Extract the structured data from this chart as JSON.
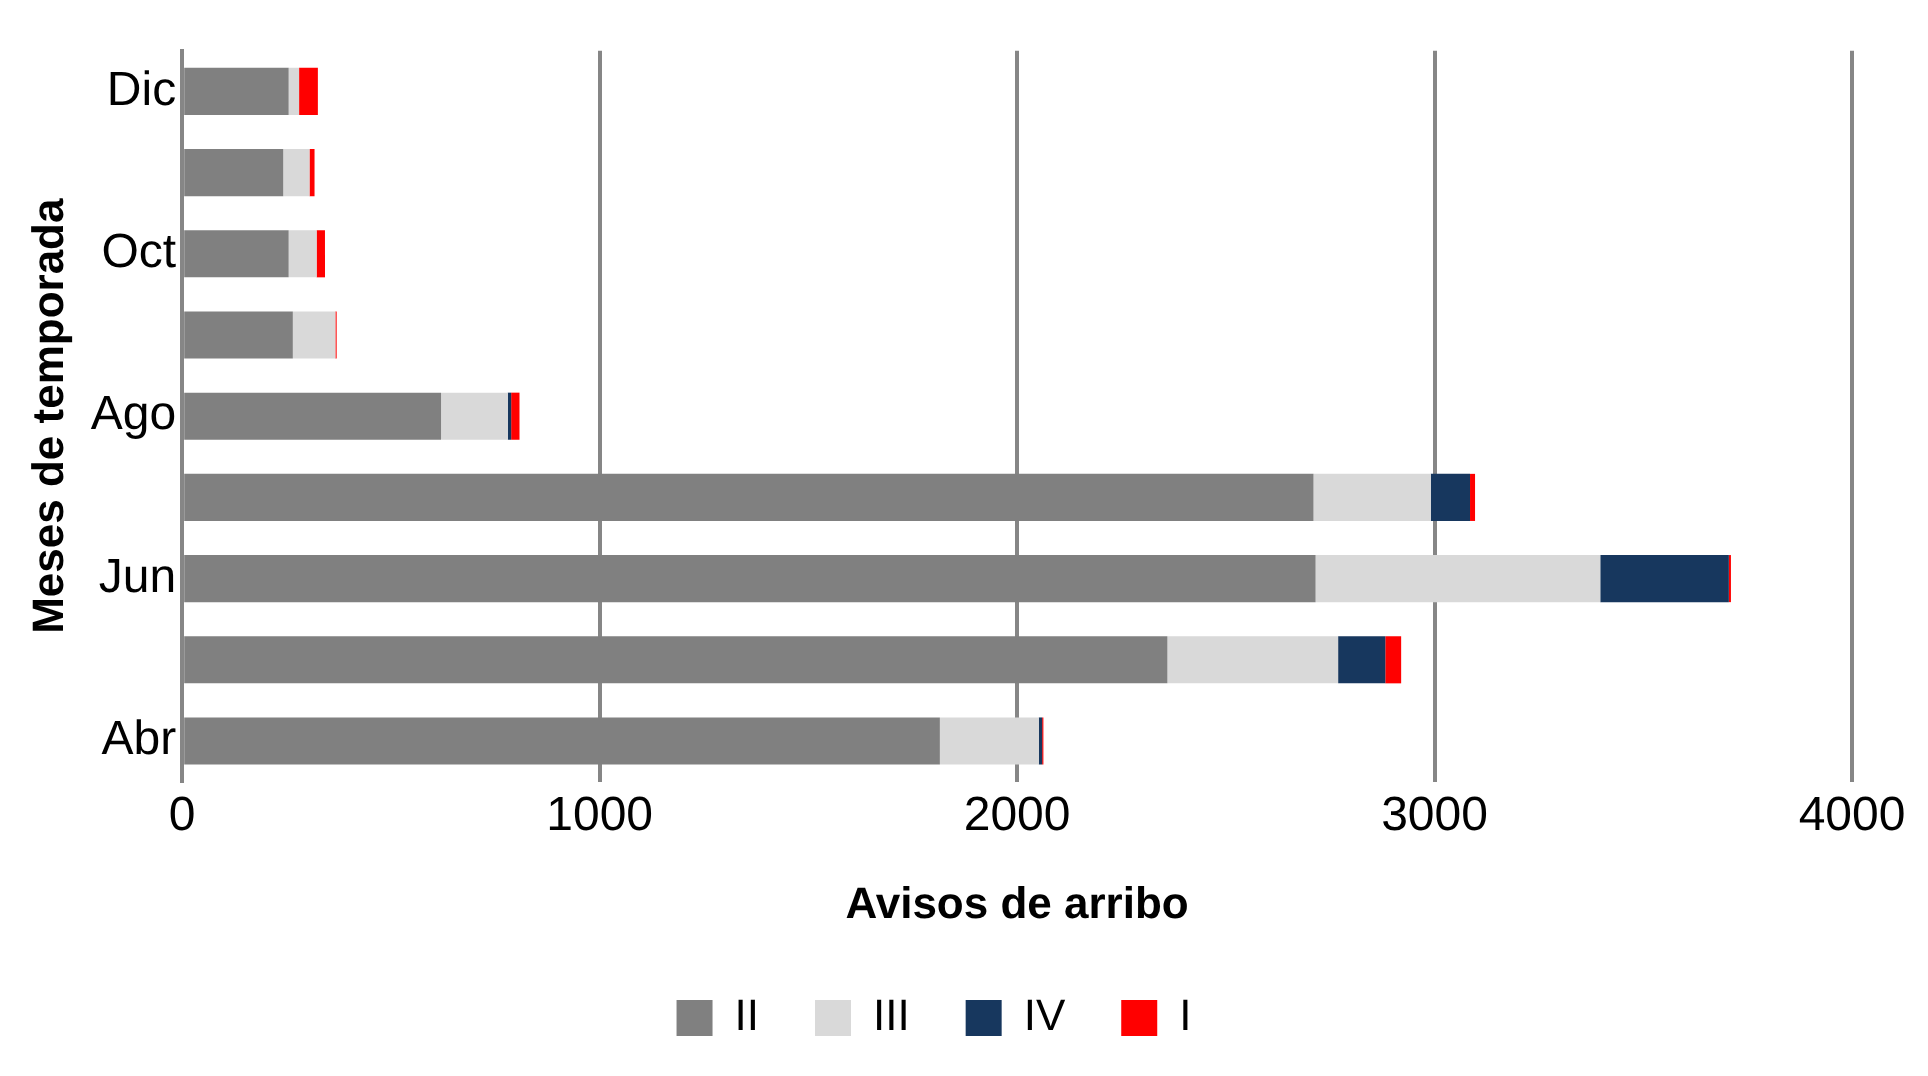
{
  "chart_data": {
    "type": "bar",
    "orientation": "horizontal",
    "stacked": true,
    "xlabel": "Avisos de arribo",
    "ylabel": "Meses de temporada",
    "categories": [
      "Dic",
      null,
      "Oct",
      null,
      "Ago",
      null,
      "Jun",
      null,
      "Abr"
    ],
    "series": [
      {
        "name": "II",
        "color": "#808080",
        "values": [
          255,
          242,
          255,
          265,
          620,
          2710,
          2715,
          2360,
          1815
        ]
      },
      {
        "name": "III",
        "color": "#d9d9d9",
        "values": [
          25,
          63,
          67,
          102,
          160,
          281,
          682,
          409,
          237
        ]
      },
      {
        "name": "IV",
        "color": "#17375e",
        "values": [
          0,
          0,
          0,
          0,
          8,
          94,
          308,
          113,
          8
        ]
      },
      {
        "name": "I",
        "color": "#ff0000",
        "values": [
          45,
          12,
          20,
          3,
          20,
          12,
          5,
          38,
          3
        ]
      }
    ],
    "xlim": [
      0,
      4000
    ],
    "xticks": [
      0,
      1000,
      2000,
      3000,
      4000
    ],
    "grid": "x",
    "legend": "bottom"
  }
}
